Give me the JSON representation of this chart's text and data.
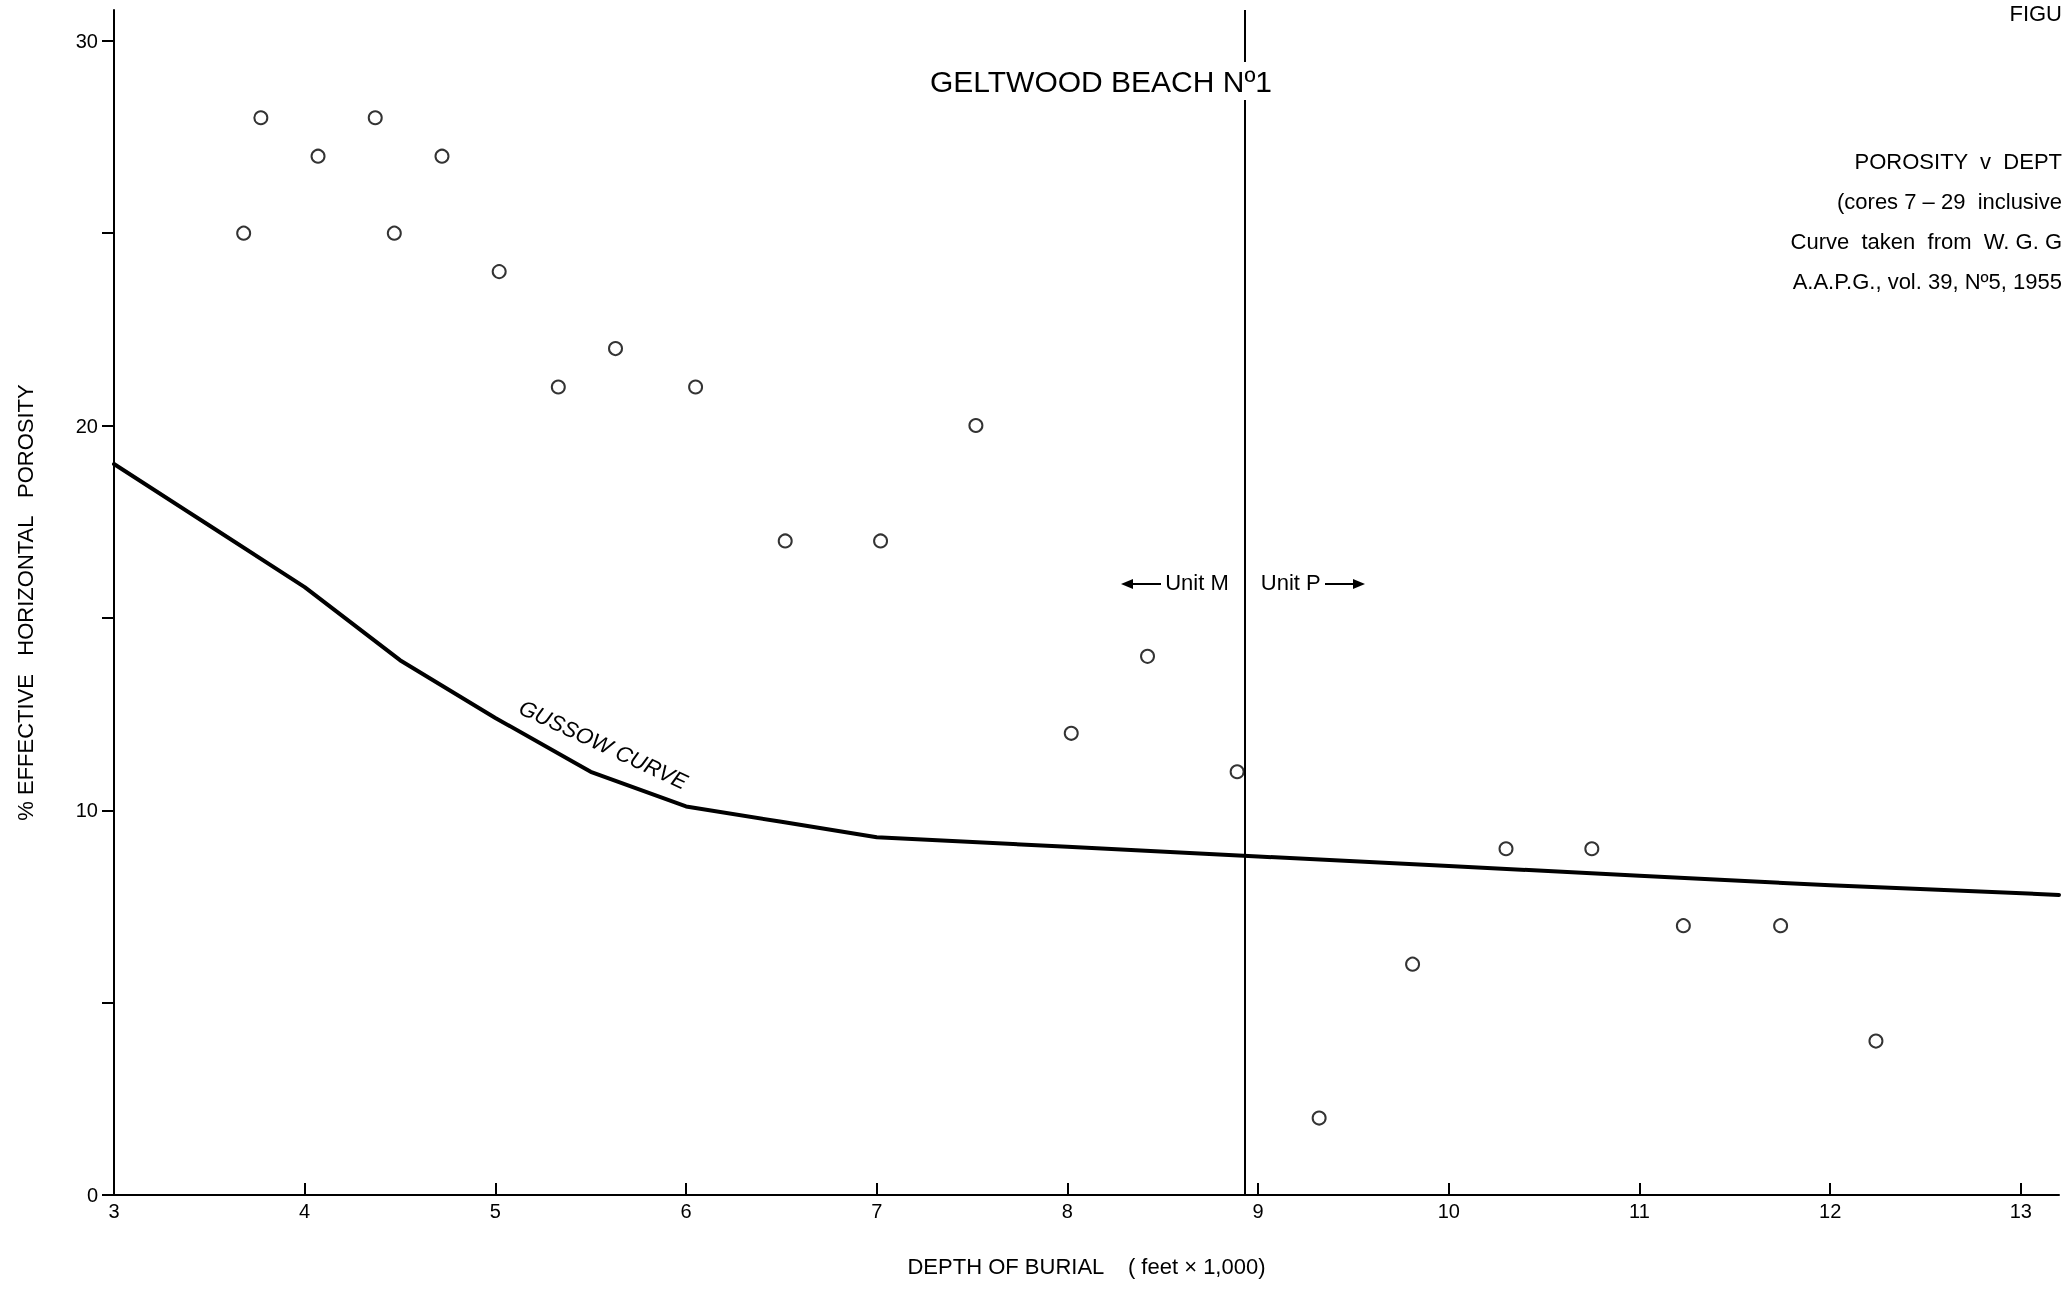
{
  "chart_data": {
    "type": "scatter",
    "title": "GELTWOOD BEACH Nº1",
    "xlabel": "DEPTH OF BURIAL    ( feet × 1,000)",
    "ylabel": "% EFFECTIVE   HORIZONTAL   POROSITY",
    "annotations": [
      "FIGU",
      "POROSITY  v  DEPT",
      "(cores 7 – 29  inclusive",
      "Curve  taken  from  W. G. G",
      "A.A.P.G., vol. 39, Nº5, 1955",
      "Unit M",
      "Unit P"
    ],
    "xlim": [
      3,
      13.2
    ],
    "ylim": [
      0,
      30.8
    ],
    "xticks": [
      3,
      4,
      5,
      6,
      7,
      8,
      9,
      10,
      11,
      12,
      13
    ],
    "yticks": [
      0,
      {
        "value": 5,
        "label": null
      },
      10,
      {
        "value": 15,
        "label": null
      },
      20,
      {
        "value": 25,
        "label": null
      },
      30
    ],
    "grid": false,
    "marker": "circle",
    "series": [
      {
        "type": "scatter",
        "color": "#000000",
        "x": [
          3.68,
          3.77,
          4.07,
          4.37,
          4.47,
          4.72,
          5.02,
          5.33,
          5.63,
          6.05,
          6.52,
          7.02,
          7.52,
          8.02,
          8.42,
          8.89,
          9.32,
          9.81,
          10.3,
          10.75,
          11.23,
          11.74,
          12.24
        ],
        "values": [
          25,
          28,
          27,
          28,
          25,
          27,
          24,
          21,
          22,
          21,
          17,
          17,
          20,
          12,
          14,
          11,
          2,
          6,
          9,
          9,
          7,
          7,
          4
        ]
      },
      {
        "type": "line",
        "name": "GUSSOW CURVE",
        "color": "#000000",
        "marker": "none",
        "x": [
          3,
          3.5,
          4,
          4.5,
          5,
          5.5,
          6,
          6.5,
          7,
          8,
          9,
          10,
          11,
          12,
          13.2
        ],
        "values": [
          19,
          17.4,
          15.8,
          13.9,
          12.4,
          11,
          10.1,
          9.7,
          9.3,
          9.05,
          8.8,
          8.55,
          8.3,
          8.05,
          7.8
        ]
      }
    ],
    "ref_lines": [
      {
        "axis": "x",
        "value": 8.93
      }
    ]
  }
}
